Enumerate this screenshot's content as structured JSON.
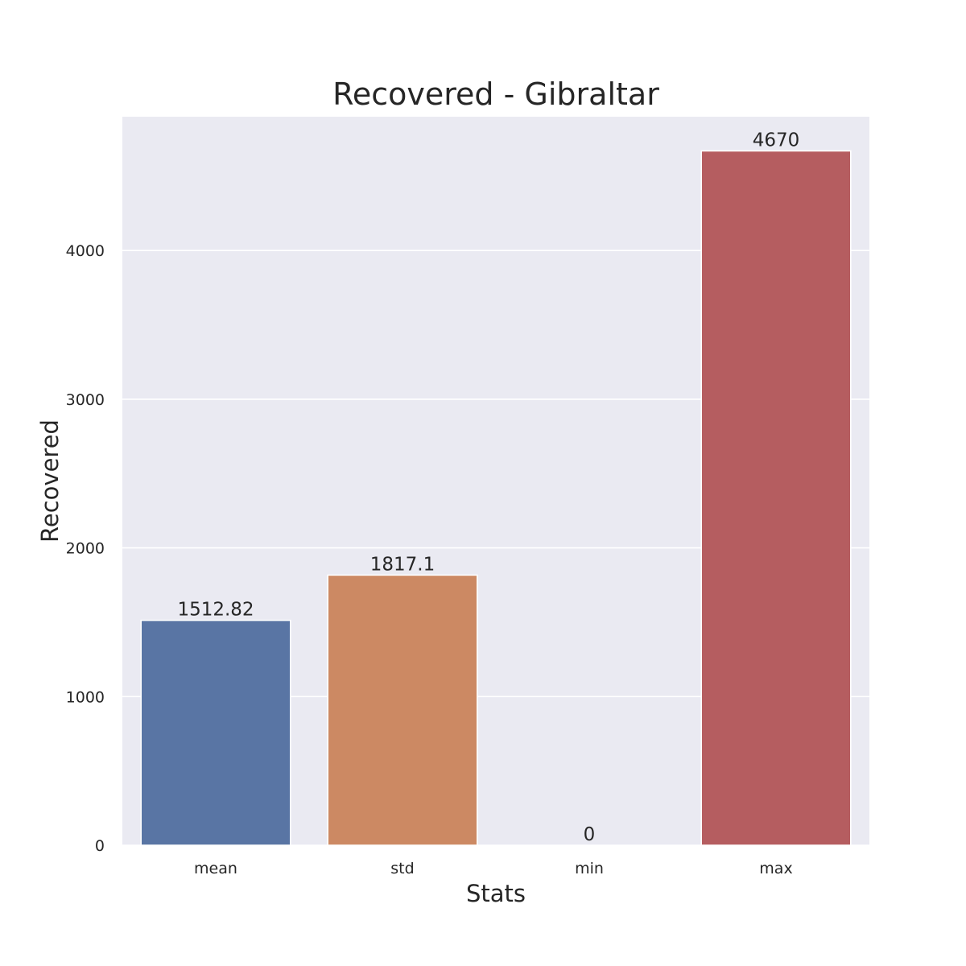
{
  "chart_data": {
    "type": "bar",
    "title": "Recovered - Gibraltar",
    "xlabel": "Stats",
    "ylabel": "Recovered",
    "categories": [
      "mean",
      "std",
      "min",
      "max"
    ],
    "values": [
      1512.82,
      1817.1,
      0,
      4670
    ],
    "data_labels": [
      "1512.82",
      "1817.1",
      "0",
      "4670"
    ],
    "ylim": [
      0,
      4900
    ],
    "yticks": [
      0,
      1000,
      2000,
      3000,
      4000
    ],
    "grid": true,
    "colors": [
      "#5975a4",
      "#cc8963",
      "#5f9e6e",
      "#b55d60"
    ],
    "background": "#eaeaf2"
  }
}
